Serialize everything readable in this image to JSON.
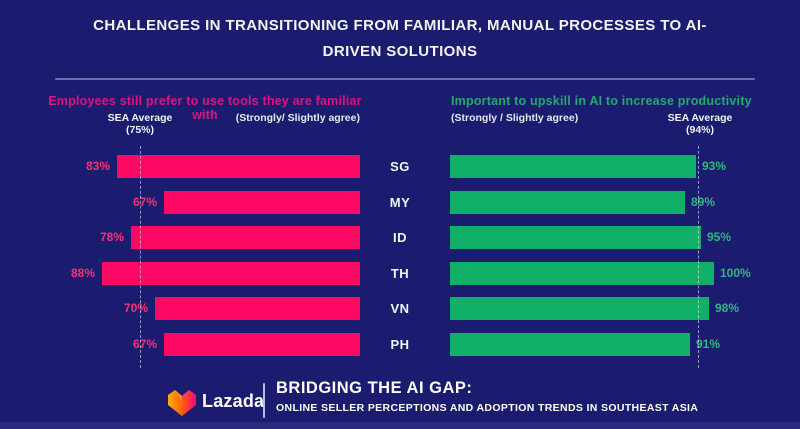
{
  "title": "CHALLENGES IN TRANSITIONING FROM FAMILIAR, MANUAL PROCESSES TO AI-DRIVEN SOLUTIONS",
  "colors": {
    "background": "#1b1b70",
    "pink_bar": "#fb0963",
    "green_bar": "#10b068",
    "pink_title": "#e0127c",
    "green_title": "#21a96e",
    "white_text": "#f4f4fa",
    "bottom_accent": "#29297e"
  },
  "chart_data": [
    {
      "type": "bar",
      "orientation": "horizontal",
      "direction": "right-to-left",
      "title": "Employees still prefer to use tools they are familiar with",
      "subtitle": "(Strongly/ Slightly agree)",
      "categories": [
        "SG",
        "MY",
        "ID",
        "TH",
        "VN",
        "PH"
      ],
      "values": [
        83,
        67,
        78,
        88,
        70,
        67
      ],
      "unit": "%",
      "average_label": "SEA Average",
      "average_value_label": "(75%)",
      "average_value": 75,
      "bar_color": "#fb0963",
      "value_label_color": "#fb2e74",
      "legend_position": "none",
      "grid": false
    },
    {
      "type": "bar",
      "orientation": "horizontal",
      "direction": "left-to-right",
      "title": "Important to upskill in AI to increase productivity",
      "subtitle": "(Strongly / Slightly agree)",
      "categories": [
        "SG",
        "MY",
        "ID",
        "TH",
        "VN",
        "PH"
      ],
      "values": [
        93,
        89,
        95,
        100,
        98,
        91
      ],
      "unit": "%",
      "average_label": "SEA Average",
      "average_value_label": "(94%)",
      "average_value": 94,
      "bar_color": "#10b068",
      "value_label_color": "#2eb87c",
      "legend_position": "none",
      "grid": false
    }
  ],
  "footer": {
    "brand": "Lazada",
    "title": "BRIDGING THE AI GAP:",
    "subtitle": "ONLINE SELLER PERCEPTIONS AND ADOPTION TRENDS IN SOUTHEAST ASIA"
  }
}
